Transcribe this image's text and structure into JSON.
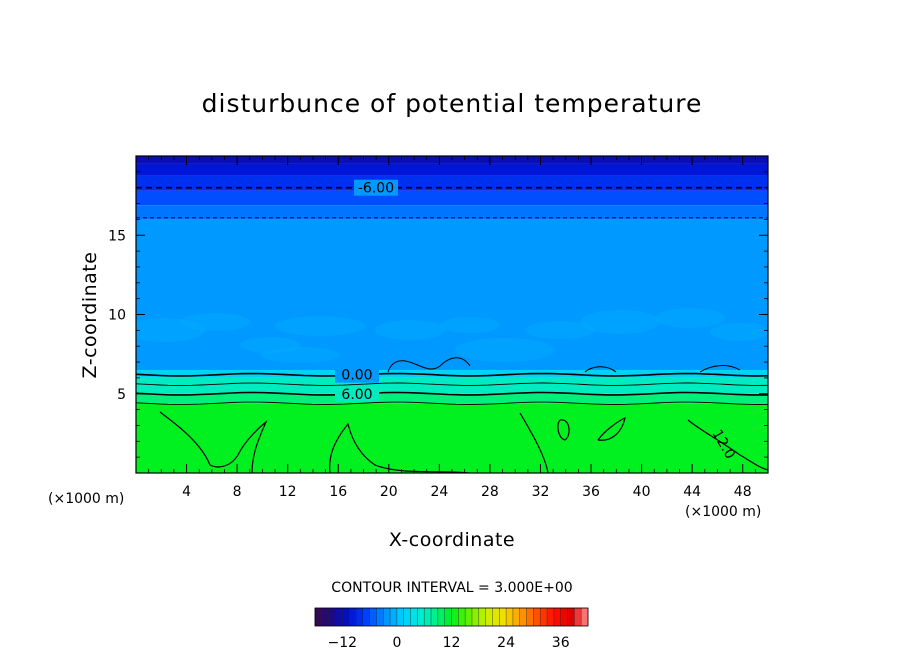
{
  "chart_data": {
    "type": "heatmap",
    "title": "disturbunce of potential temperature",
    "xlabel": "X-coordinate",
    "ylabel": "Z-coordinate",
    "x_unit": "(×1000 m)",
    "y_unit": "(×1000 m)",
    "xlim": [
      0,
      50
    ],
    "ylim": [
      0,
      20
    ],
    "x_ticks": [
      4,
      8,
      12,
      16,
      20,
      24,
      28,
      32,
      36,
      40,
      44,
      48
    ],
    "y_ticks": [
      5,
      10,
      15
    ],
    "contour_interval_label": "CONTOUR INTERVAL = 3.000E+00",
    "contour_levels": [
      {
        "value": -6,
        "label": "-6.00",
        "z": 18.0,
        "style": "dashed"
      },
      {
        "value": -3,
        "label": "",
        "z": 16.1,
        "style": "dashed"
      },
      {
        "value": 0,
        "label": "0.00",
        "z": 6.2,
        "style": "solid"
      },
      {
        "value": 3,
        "label": "",
        "z": 5.6,
        "style": "solid"
      },
      {
        "value": 6,
        "label": "6.00",
        "z": 5.0,
        "style": "solid"
      },
      {
        "value": 9,
        "label": "",
        "z": 4.4,
        "style": "solid"
      },
      {
        "value": 12,
        "label": "12.0",
        "z": 2.5,
        "style": "solid"
      }
    ],
    "field_bands": [
      {
        "z0": 19.5,
        "z1": 20.0,
        "value": -12
      },
      {
        "z0": 18.8,
        "z1": 19.5,
        "value": -10
      },
      {
        "z0": 17.8,
        "z1": 18.8,
        "value": -8
      },
      {
        "z0": 16.9,
        "z1": 17.8,
        "value": -6
      },
      {
        "z0": 16.0,
        "z1": 16.9,
        "value": -4
      },
      {
        "z0": 6.5,
        "z1": 16.0,
        "value": -2
      },
      {
        "z0": 6.0,
        "z1": 6.5,
        "value": 2
      },
      {
        "z0": 5.0,
        "z1": 6.0,
        "value": 6
      },
      {
        "z0": 4.4,
        "z1": 5.0,
        "value": 9
      },
      {
        "z0": 0.0,
        "z1": 4.4,
        "value": 12
      }
    ],
    "colorbar": {
      "min": -18,
      "max": 42,
      "ticks": [
        {
          "value": -12,
          "label": "−12"
        },
        {
          "value": 0,
          "label": "0"
        },
        {
          "value": 12,
          "label": "12"
        },
        {
          "value": 24,
          "label": "24"
        },
        {
          "value": 36,
          "label": "36"
        }
      ]
    },
    "colormap": [
      "#3a0a4a",
      "#1a0a8a",
      "#0010d0",
      "#0040ff",
      "#0088ff",
      "#00c8ff",
      "#00e8e0",
      "#00f090",
      "#00f020",
      "#60f000",
      "#c8f000",
      "#f0e000",
      "#ffa000",
      "#ff5000",
      "#ff1000",
      "#e00000",
      "#ff9090"
    ],
    "grid": false
  }
}
